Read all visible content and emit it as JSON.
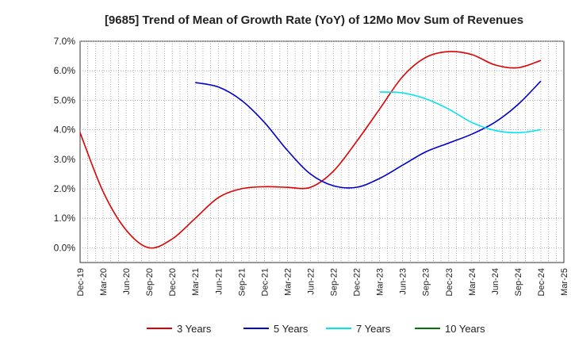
{
  "chart_data": {
    "type": "line",
    "title": "[9685]  Trend of Mean of Growth Rate (YoY) of 12Mo Mov Sum of Revenues",
    "xlabel": "",
    "ylabel": "",
    "ylim": [
      -0.5,
      7.0
    ],
    "yticks": [
      0.0,
      1.0,
      2.0,
      3.0,
      4.0,
      5.0,
      6.0,
      7.0
    ],
    "ytick_labels": [
      "0.0%",
      "1.0%",
      "2.0%",
      "3.0%",
      "4.0%",
      "5.0%",
      "6.0%",
      "7.0%"
    ],
    "xticks": [
      "Dec-19",
      "Mar-20",
      "Jun-20",
      "Sep-20",
      "Dec-20",
      "Mar-21",
      "Jun-21",
      "Sep-21",
      "Dec-21",
      "Mar-22",
      "Jun-22",
      "Sep-22",
      "Dec-22",
      "Mar-23",
      "Jun-23",
      "Sep-23",
      "Dec-23",
      "Mar-24",
      "Jun-24",
      "Sep-24",
      "Dec-24",
      "Mar-25"
    ],
    "grid": true,
    "legend_position": "bottom",
    "series": [
      {
        "name": "3 Years",
        "color": "#dd0000",
        "points": [
          [
            0,
            3.9
          ],
          [
            1,
            1.9
          ],
          [
            2,
            0.6
          ],
          [
            3,
            0.0
          ],
          [
            4,
            0.3
          ],
          [
            5,
            1.0
          ],
          [
            6,
            1.7
          ],
          [
            7,
            2.0
          ],
          [
            8,
            2.07
          ],
          [
            9,
            2.05
          ],
          [
            10,
            2.05
          ],
          [
            11,
            2.6
          ],
          [
            12,
            3.6
          ],
          [
            13,
            4.7
          ],
          [
            14,
            5.8
          ],
          [
            15,
            6.45
          ],
          [
            16,
            6.65
          ],
          [
            17,
            6.55
          ],
          [
            18,
            6.2
          ],
          [
            19,
            6.1
          ],
          [
            20,
            6.35
          ]
        ]
      },
      {
        "name": "5 Years",
        "color": "#0000cc",
        "points": [
          [
            5,
            5.6
          ],
          [
            6,
            5.45
          ],
          [
            7,
            5.0
          ],
          [
            8,
            4.25
          ],
          [
            9,
            3.3
          ],
          [
            10,
            2.5
          ],
          [
            11,
            2.1
          ],
          [
            12,
            2.05
          ],
          [
            13,
            2.35
          ],
          [
            14,
            2.8
          ],
          [
            15,
            3.25
          ],
          [
            16,
            3.55
          ],
          [
            17,
            3.85
          ],
          [
            18,
            4.25
          ],
          [
            19,
            4.85
          ],
          [
            20,
            5.65
          ]
        ]
      },
      {
        "name": "7 Years",
        "color": "#00e5ee",
        "points": [
          [
            13,
            5.28
          ],
          [
            14,
            5.25
          ],
          [
            15,
            5.05
          ],
          [
            16,
            4.7
          ],
          [
            17,
            4.25
          ],
          [
            18,
            3.98
          ],
          [
            19,
            3.9
          ],
          [
            20,
            4.0
          ]
        ]
      },
      {
        "name": "10 Years",
        "color": "#007700",
        "points": []
      }
    ]
  }
}
